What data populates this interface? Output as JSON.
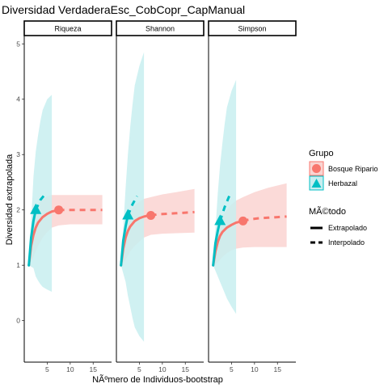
{
  "chart_data": {
    "type": "line",
    "title": "Diversidad VerdaderaEsc_CobCopr_CapManual",
    "xlabel": "NÃºmero de Individuos-bootstrap",
    "ylabel": "Diversidad extrapolada",
    "xlim": [
      0,
      19
    ],
    "ylim": [
      -0.75,
      5.15
    ],
    "xticks": [
      5,
      10,
      15
    ],
    "yticks": [
      0,
      1,
      2,
      3,
      4,
      5
    ],
    "grid": false,
    "legend_position": "right",
    "facets": [
      {
        "label": "Riqueza",
        "series": [
          {
            "name": "Bosque Ripario",
            "color": "#F8766D",
            "ribbon_color": "#FAD4D1",
            "observed": {
              "x": 7.5,
              "y": 2.0
            },
            "interpolated": {
              "x": [
                1,
                1.5,
                2,
                2.5,
                3,
                4,
                5,
                6,
                7,
                7.5
              ],
              "y": [
                1.0,
                1.35,
                1.55,
                1.68,
                1.77,
                1.87,
                1.93,
                1.97,
                1.99,
                2.0
              ]
            },
            "extrapolated": {
              "x": [
                7.5,
                9,
                11,
                13,
                15,
                17
              ],
              "y": [
                2.0,
                2.0,
                2.0,
                2.0,
                2.0,
                2.0
              ]
            },
            "ribbon": {
              "x": [
                1,
                2,
                3,
                4,
                5,
                6,
                7.5,
                10,
                13,
                17
              ],
              "lower": [
                1.0,
                1.15,
                1.35,
                1.5,
                1.6,
                1.68,
                1.72,
                1.74,
                1.74,
                1.74
              ],
              "upper": [
                1.0,
                1.9,
                2.1,
                2.2,
                2.25,
                2.27,
                2.27,
                2.27,
                2.27,
                2.27
              ]
            }
          },
          {
            "name": "Herbazal",
            "color": "#00BFC4",
            "ribbon_color": "#C8EEF0",
            "observed": {
              "x": 2.5,
              "y": 2.0
            },
            "interpolated": {
              "x": [
                1,
                1.5,
                2,
                2.5
              ],
              "y": [
                1.0,
                1.5,
                1.8,
                2.0
              ]
            },
            "extrapolated": {
              "x": [
                2.5,
                3.5,
                4.5
              ],
              "y": [
                2.0,
                2.18,
                2.28
              ]
            },
            "ribbon": {
              "x": [
                1,
                2,
                2.5,
                3,
                3.5,
                4,
                5,
                6
              ],
              "lower": [
                1.0,
                0.95,
                0.8,
                0.72,
                0.66,
                0.61,
                0.56,
                0.52
              ],
              "upper": [
                1.0,
                2.6,
                3.05,
                3.35,
                3.6,
                3.8,
                4.0,
                4.08
              ]
            }
          }
        ]
      },
      {
        "label": "Shannon",
        "series": [
          {
            "name": "Bosque Ripario",
            "color": "#F8766D",
            "ribbon_color": "#FAD4D1",
            "observed": {
              "x": 7.5,
              "y": 1.9
            },
            "interpolated": {
              "x": [
                1,
                1.5,
                2,
                2.5,
                3,
                4,
                5,
                6,
                7,
                7.5
              ],
              "y": [
                1.0,
                1.3,
                1.5,
                1.62,
                1.7,
                1.8,
                1.85,
                1.88,
                1.9,
                1.9
              ]
            },
            "extrapolated": {
              "x": [
                7.5,
                9,
                11,
                13,
                15,
                17
              ],
              "y": [
                1.9,
                1.92,
                1.93,
                1.94,
                1.95,
                1.96
              ]
            },
            "ribbon": {
              "x": [
                1,
                2,
                3,
                4,
                5,
                6,
                7.5,
                10,
                13,
                17
              ],
              "lower": [
                1.0,
                1.1,
                1.25,
                1.35,
                1.43,
                1.5,
                1.55,
                1.57,
                1.58,
                1.59
              ],
              "upper": [
                1.0,
                1.8,
                1.98,
                2.08,
                2.15,
                2.2,
                2.23,
                2.28,
                2.32,
                2.38
              ]
            }
          },
          {
            "name": "Herbazal",
            "color": "#00BFC4",
            "ribbon_color": "#C8EEF0",
            "observed": {
              "x": 2.5,
              "y": 1.9
            },
            "interpolated": {
              "x": [
                1,
                1.5,
                2,
                2.5
              ],
              "y": [
                1.0,
                1.45,
                1.7,
                1.9
              ]
            },
            "extrapolated": {
              "x": [
                2.5,
                3.5,
                4.5
              ],
              "y": [
                1.9,
                2.1,
                2.25
              ]
            },
            "ribbon": {
              "x": [
                1,
                2,
                2.5,
                3,
                3.5,
                4,
                5,
                6
              ],
              "lower": [
                1.0,
                0.7,
                0.45,
                0.25,
                0.05,
                -0.12,
                -0.28,
                -0.38
              ],
              "upper": [
                1.0,
                2.4,
                3.0,
                3.5,
                3.9,
                4.25,
                4.6,
                4.85
              ]
            }
          }
        ]
      },
      {
        "label": "Simpson",
        "series": [
          {
            "name": "Bosque Ripario",
            "color": "#F8766D",
            "ribbon_color": "#FAD4D1",
            "observed": {
              "x": 7.5,
              "y": 1.8
            },
            "interpolated": {
              "x": [
                1,
                1.5,
                2,
                2.5,
                3,
                4,
                5,
                6,
                7,
                7.5
              ],
              "y": [
                1.0,
                1.25,
                1.42,
                1.53,
                1.6,
                1.68,
                1.73,
                1.77,
                1.79,
                1.8
              ]
            },
            "extrapolated": {
              "x": [
                7.5,
                9,
                11,
                13,
                15,
                17
              ],
              "y": [
                1.8,
                1.83,
                1.85,
                1.86,
                1.87,
                1.88
              ]
            },
            "ribbon": {
              "x": [
                1,
                2,
                3,
                4,
                5,
                6,
                7.5,
                10,
                13,
                17
              ],
              "lower": [
                1.0,
                1.05,
                1.15,
                1.22,
                1.27,
                1.3,
                1.32,
                1.33,
                1.33,
                1.33
              ],
              "upper": [
                1.0,
                1.7,
                1.9,
                2.0,
                2.1,
                2.17,
                2.23,
                2.32,
                2.4,
                2.48
              ]
            }
          },
          {
            "name": "Herbazal",
            "color": "#00BFC4",
            "ribbon_color": "#C8EEF0",
            "observed": {
              "x": 2.5,
              "y": 1.8
            },
            "interpolated": {
              "x": [
                1,
                1.5,
                2,
                2.5
              ],
              "y": [
                1.0,
                1.4,
                1.62,
                1.8
              ]
            },
            "extrapolated": {
              "x": [
                2.5,
                3.5,
                4.5
              ],
              "y": [
                1.8,
                2.05,
                2.25
              ]
            },
            "ribbon": {
              "x": [
                1,
                2,
                2.5,
                3,
                3.5,
                4,
                5,
                6
              ],
              "lower": [
                1.0,
                0.8,
                0.7,
                0.6,
                0.5,
                0.4,
                0.25,
                0.12
              ],
              "upper": [
                1.0,
                2.3,
                2.8,
                3.2,
                3.55,
                3.85,
                4.15,
                4.35
              ]
            }
          }
        ]
      }
    ]
  },
  "legend": {
    "group_title": "Grupo",
    "groups": [
      {
        "label": "Bosque Ripario",
        "color": "#F8766D",
        "fill": "#FAD4D1",
        "shape": "circle"
      },
      {
        "label": "Herbazal",
        "color": "#00BFC4",
        "fill": "#C8EEF0",
        "shape": "triangle"
      }
    ],
    "method_title": "MÃ©todo",
    "methods": [
      {
        "label": "Extrapolado",
        "line": "solid"
      },
      {
        "label": "Interpolado",
        "line": "dashed"
      }
    ]
  }
}
